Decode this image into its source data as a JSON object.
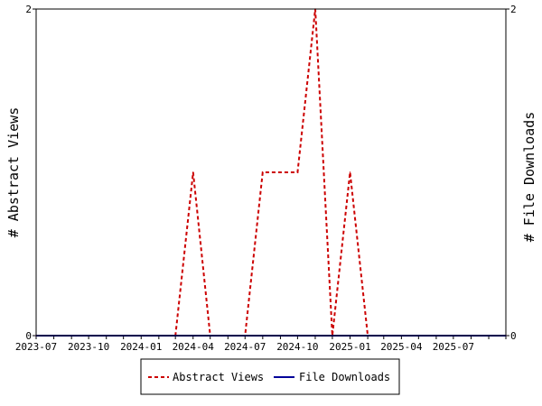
{
  "chart_data": {
    "type": "line",
    "x_type": "date",
    "x_range": [
      "2023-07-01",
      "2025-10-01"
    ],
    "x_tick_labels": [
      "2023-07",
      "2023-10",
      "2024-01",
      "2024-04",
      "2024-07",
      "2024-10",
      "2025-01",
      "2025-04",
      "2025-07"
    ],
    "y_left": {
      "label": "# Abstract Views",
      "range": [
        0,
        2
      ],
      "tick_labels": [
        "0",
        "2"
      ]
    },
    "y_right": {
      "label": "# File Downloads",
      "range": [
        0,
        2
      ],
      "tick_labels": [
        "0",
        "2"
      ]
    },
    "grid": false,
    "legend_placement": "bottom-center",
    "series": [
      {
        "name": "Abstract Views",
        "axis": "left",
        "color": "#cc0000",
        "line_style": "dashed",
        "points": [
          {
            "x": "2023-07-01",
            "y": 0
          },
          {
            "x": "2024-03-01",
            "y": 0
          },
          {
            "x": "2024-04-01",
            "y": 1
          },
          {
            "x": "2024-05-01",
            "y": 0
          },
          {
            "x": "2024-07-01",
            "y": 0
          },
          {
            "x": "2024-08-01",
            "y": 1
          },
          {
            "x": "2024-09-01",
            "y": 1
          },
          {
            "x": "2024-10-01",
            "y": 1
          },
          {
            "x": "2024-11-01",
            "y": 2
          },
          {
            "x": "2024-12-01",
            "y": 0
          },
          {
            "x": "2025-01-01",
            "y": 1
          },
          {
            "x": "2025-02-01",
            "y": 0
          },
          {
            "x": "2025-10-01",
            "y": 0
          }
        ]
      },
      {
        "name": "File Downloads",
        "axis": "right",
        "color": "#000099",
        "line_style": "solid",
        "points": [
          {
            "x": "2023-07-01",
            "y": 0
          },
          {
            "x": "2025-10-01",
            "y": 0
          }
        ]
      }
    ]
  }
}
